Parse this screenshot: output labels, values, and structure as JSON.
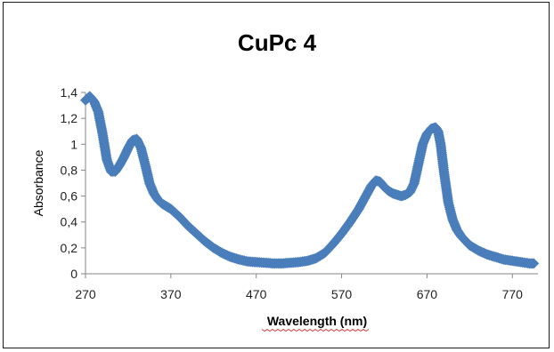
{
  "chart_data": {
    "type": "scatter",
    "title": "CuPc 4",
    "xlabel": "Wavelength (nm)",
    "ylabel": "Absorbance",
    "xlim": [
      270,
      800
    ],
    "ylim": [
      0,
      1.4
    ],
    "x_ticks": [
      "270",
      "370",
      "470",
      "570",
      "670",
      "770"
    ],
    "y_ticks": [
      "0",
      "0,2",
      "0,4",
      "0,6",
      "0,8",
      "1",
      "1,2",
      "1,4"
    ],
    "grid": false,
    "legend": "none",
    "marker_color": "#4a7ebb",
    "series": [
      {
        "x": [
          270,
          275,
          280,
          285,
          290,
          295,
          300,
          305,
          310,
          315,
          320,
          325,
          330,
          335,
          340,
          345,
          350,
          355,
          360,
          365,
          370,
          375,
          380,
          390,
          400,
          410,
          420,
          430,
          440,
          450,
          460,
          470,
          480,
          490,
          500,
          510,
          520,
          530,
          540,
          550,
          560,
          570,
          580,
          590,
          600,
          605,
          610,
          615,
          620,
          625,
          630,
          635,
          640,
          645,
          650,
          655,
          660,
          665,
          670,
          675,
          680,
          683,
          686,
          690,
          695,
          700,
          705,
          710,
          720,
          730,
          740,
          750,
          760,
          770,
          780,
          790,
          795
        ],
        "y": [
          1.34,
          1.37,
          1.33,
          1.25,
          1.08,
          0.88,
          0.79,
          0.79,
          0.84,
          0.9,
          0.97,
          1.03,
          1.04,
          0.97,
          0.84,
          0.7,
          0.62,
          0.57,
          0.54,
          0.52,
          0.5,
          0.47,
          0.44,
          0.37,
          0.31,
          0.25,
          0.2,
          0.16,
          0.13,
          0.11,
          0.095,
          0.09,
          0.085,
          0.08,
          0.08,
          0.085,
          0.09,
          0.1,
          0.12,
          0.16,
          0.23,
          0.31,
          0.4,
          0.5,
          0.62,
          0.68,
          0.72,
          0.71,
          0.67,
          0.64,
          0.62,
          0.61,
          0.6,
          0.61,
          0.63,
          0.7,
          0.85,
          1.0,
          1.08,
          1.12,
          1.13,
          1.1,
          1.0,
          0.78,
          0.55,
          0.42,
          0.34,
          0.29,
          0.22,
          0.18,
          0.15,
          0.13,
          0.11,
          0.1,
          0.09,
          0.08,
          0.08
        ]
      }
    ]
  }
}
